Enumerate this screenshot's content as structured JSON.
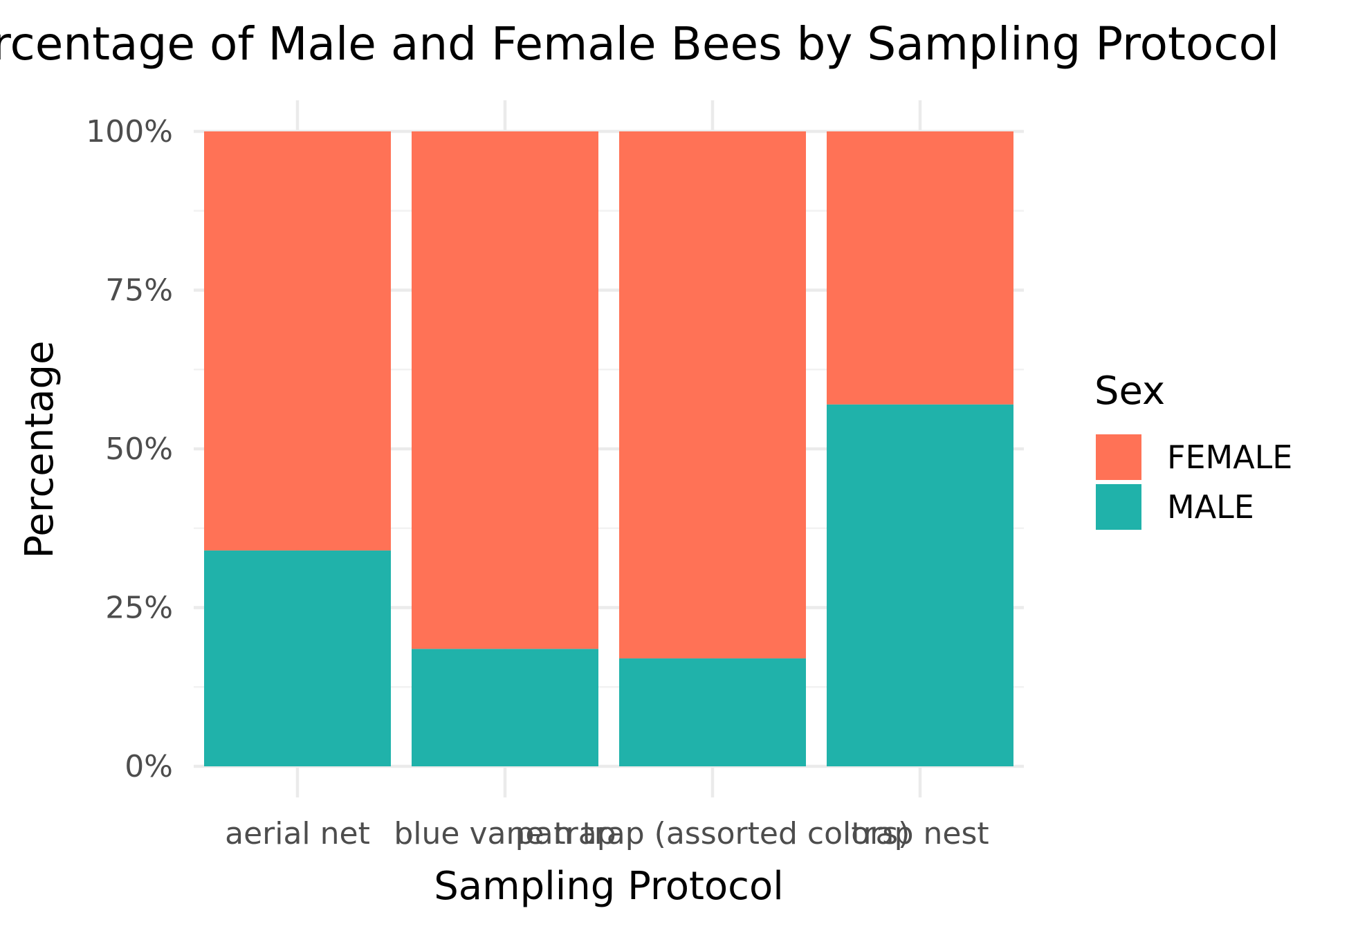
{
  "chart_data": {
    "type": "bar",
    "stacked": true,
    "normalized": true,
    "title": "Percentage of Male and Female Bees by Sampling Protocol",
    "xlabel": "Sampling Protocol",
    "ylabel": "Percentage",
    "categories": [
      "aerial net",
      "blue vane trap",
      "pan trap (assorted colors)",
      "trap nest"
    ],
    "series": [
      {
        "name": "MALE",
        "color": "#20b2aa",
        "values": [
          0.34,
          0.185,
          0.17,
          0.57
        ]
      },
      {
        "name": "FEMALE",
        "color": "#ff7256",
        "values": [
          0.66,
          0.815,
          0.83,
          0.43
        ]
      }
    ],
    "ylim": [
      0,
      1
    ],
    "yticks": [
      0,
      0.25,
      0.5,
      0.75,
      1
    ],
    "ytick_labels": [
      "0%",
      "25%",
      "50%",
      "75%",
      "100%"
    ],
    "grid": true,
    "legend": {
      "title": "Sex",
      "position": "right",
      "entries": [
        {
          "label": "FEMALE",
          "color": "#ff7256"
        },
        {
          "label": "MALE",
          "color": "#20b2aa"
        }
      ]
    }
  }
}
